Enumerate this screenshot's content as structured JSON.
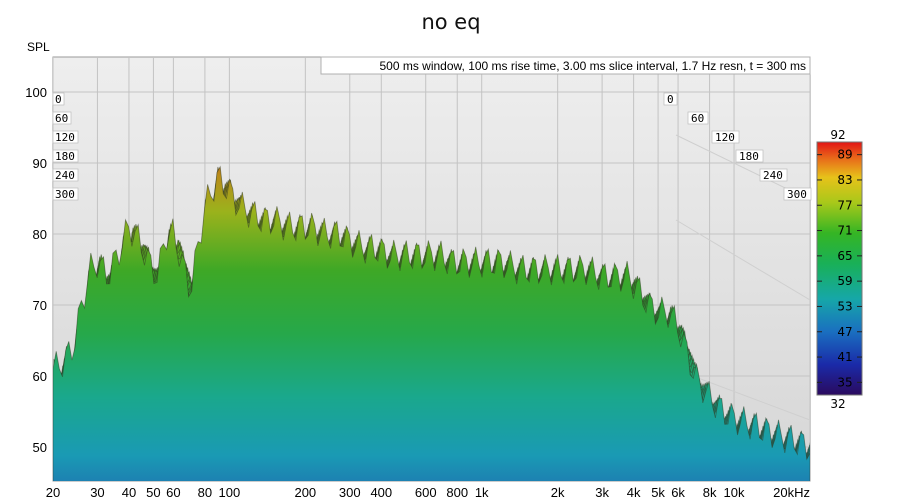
{
  "chart_data": {
    "type": "waterfall",
    "title": "no eq",
    "ylabel": "SPL",
    "info": "500 ms window, 100 ms rise time, 3.00 ms slice interval, 1.7 Hz resn, t = 300 ms",
    "x_scale": "log",
    "x_ticks": [
      "20",
      "30",
      "40",
      "50",
      "60",
      "80",
      "100",
      "200",
      "300",
      "400",
      "600",
      "800",
      "1k",
      "2k",
      "3k",
      "4k",
      "5k",
      "6k",
      "8k",
      "10k",
      "20kHz"
    ],
    "x_tick_values": [
      20,
      30,
      40,
      50,
      60,
      80,
      100,
      200,
      300,
      400,
      600,
      800,
      1000,
      2000,
      3000,
      4000,
      5000,
      6000,
      8000,
      10000,
      20000
    ],
    "xlim": [
      20,
      20000
    ],
    "y_ticks": [
      "100",
      "90",
      "80",
      "70",
      "60",
      "50"
    ],
    "y_tick_values": [
      100,
      90,
      80,
      70,
      60,
      50
    ],
    "ylim": [
      45,
      105
    ],
    "time_ticks_ms": [
      "0",
      "60",
      "120",
      "180",
      "240",
      "300"
    ],
    "colorbar": {
      "min": 32,
      "max": 92,
      "ticks": [
        "89",
        "83",
        "77",
        "71",
        "65",
        "59",
        "53",
        "47",
        "41",
        "35"
      ],
      "max_label": "92",
      "min_label": "32"
    },
    "front_slice_spl": {
      "freq_hz": [
        20,
        22,
        24,
        26,
        28,
        30,
        33,
        36,
        40,
        44,
        48,
        52,
        56,
        60,
        65,
        70,
        75,
        80,
        85,
        90,
        95,
        100,
        110,
        120,
        135,
        150,
        170,
        190,
        210,
        240,
        270,
        300,
        340,
        380,
        430,
        480,
        540,
        600,
        680,
        760,
        850,
        950,
        1000,
        1200,
        1400,
        1600,
        1800,
        2000,
        2300,
        2600,
        3000,
        3400,
        3800,
        4200,
        4600,
        5000,
        5500,
        6000,
        7000,
        8000,
        9000,
        10000,
        12000,
        14000,
        17000,
        20000
      ],
      "spl_db": [
        61,
        62,
        64,
        70,
        75,
        76,
        74,
        77,
        81,
        79,
        76,
        74,
        80,
        80,
        76,
        72,
        78,
        84,
        86,
        88,
        87,
        86,
        84,
        83,
        82,
        82,
        81,
        81,
        81,
        80,
        80,
        79,
        78,
        78,
        77,
        77,
        77,
        77,
        77,
        76,
        76,
        76,
        76,
        76,
        75,
        75,
        75,
        75,
        75,
        75,
        74,
        74,
        74,
        72,
        70,
        69,
        69,
        67,
        60,
        57,
        55,
        54,
        53,
        52,
        51,
        50
      ]
    }
  }
}
